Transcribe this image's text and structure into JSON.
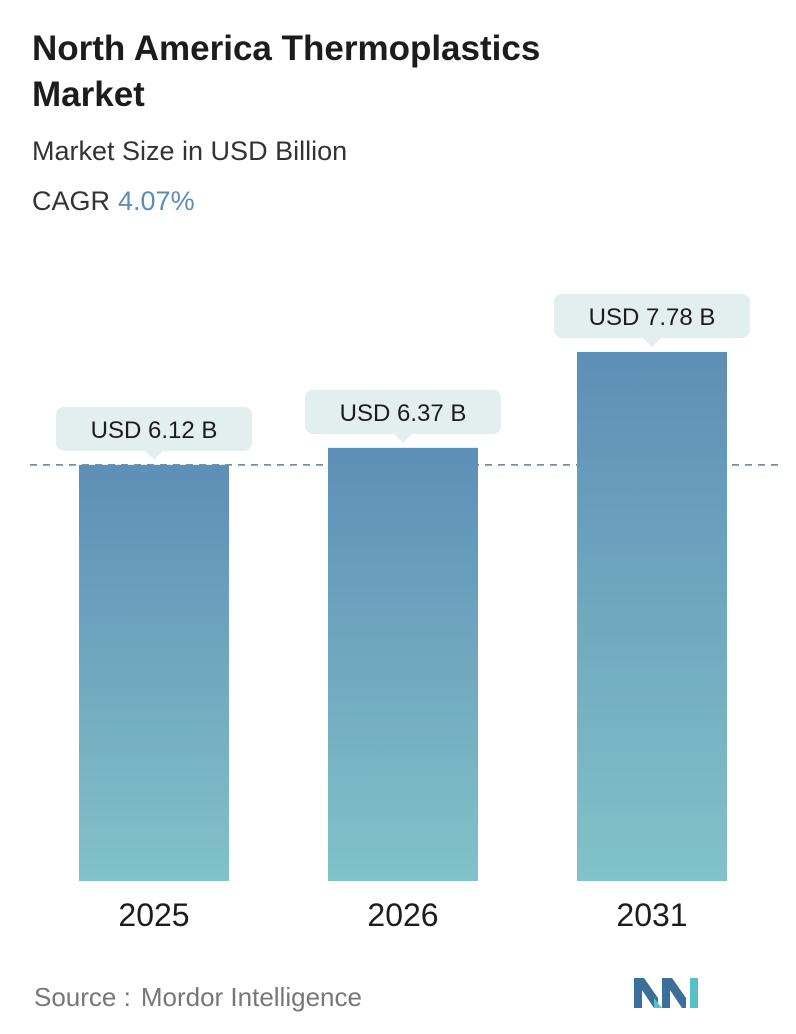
{
  "header": {
    "title_line1": "North America Thermoplastics",
    "title_line2": "Market",
    "subtitle": "Market Size in USD Billion",
    "cagr_label": "CAGR",
    "cagr_value": "4.07%"
  },
  "chart_data": {
    "type": "bar",
    "title": "North America Thermoplastics Market",
    "subtitle": "Market Size in USD Billion",
    "categories": [
      "2025",
      "2026",
      "2031"
    ],
    "values": [
      6.12,
      6.37,
      7.78
    ],
    "data_labels": [
      "USD 6.12 B",
      "USD 6.37 B",
      "USD 7.78 B"
    ],
    "reference_line": 6.12,
    "xlabel": "",
    "ylabel": "",
    "grid": false,
    "colors": {
      "bar_top": "#5e8fb7",
      "bar_bottom": "#82c2c8",
      "label_bg": "#e3eeee",
      "dash": "#5b7f99"
    }
  },
  "footer": {
    "source_label": "Source :",
    "source_value": "Mordor Intelligence"
  },
  "logo": {
    "name": "mordor-intelligence-logo",
    "color_dark": "#3a6f9a",
    "color_light": "#55c2c6"
  }
}
